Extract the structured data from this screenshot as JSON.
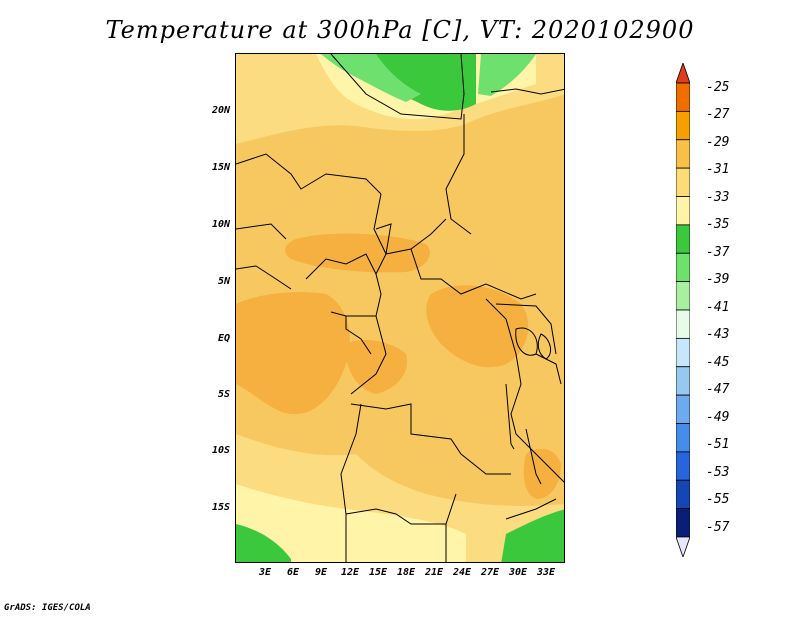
{
  "title": "Temperature at 300hPa [C], VT: 2020102900",
  "credit": "GrADS: IGES/COLA",
  "lat_labels": [
    "20N",
    "15N",
    "10N",
    "5N",
    "EQ",
    "5S",
    "10S",
    "15S"
  ],
  "lon_labels": [
    "3E",
    "6E",
    "9E",
    "12E",
    "15E",
    "18E",
    "21E",
    "24E",
    "27E",
    "30E",
    "33E"
  ],
  "legend": {
    "labels": [
      "-25",
      "-27",
      "-29",
      "-31",
      "-33",
      "-35",
      "-37",
      "-39",
      "-41",
      "-43",
      "-45",
      "-47",
      "-49",
      "-51",
      "-53",
      "-55",
      "-57"
    ],
    "colors": [
      "#e03c1e",
      "#f06e00",
      "#f5a000",
      "#f8c048",
      "#fbdc78",
      "#fff4a8",
      "#3cc83c",
      "#6ee06e",
      "#a8f0a0",
      "#e8fae8",
      "#c8e6fa",
      "#96c8f0",
      "#6eaaf0",
      "#468cea",
      "#2864dc",
      "#1446b4",
      "#0a1e78",
      "#e8e8fa"
    ]
  },
  "field_colors": {
    "c29": "#f5b040",
    "c31": "#f8c860",
    "c33": "#fbdc80",
    "c35": "#fff4a8",
    "c37": "#3cc83c",
    "c39": "#6ee06e"
  }
}
